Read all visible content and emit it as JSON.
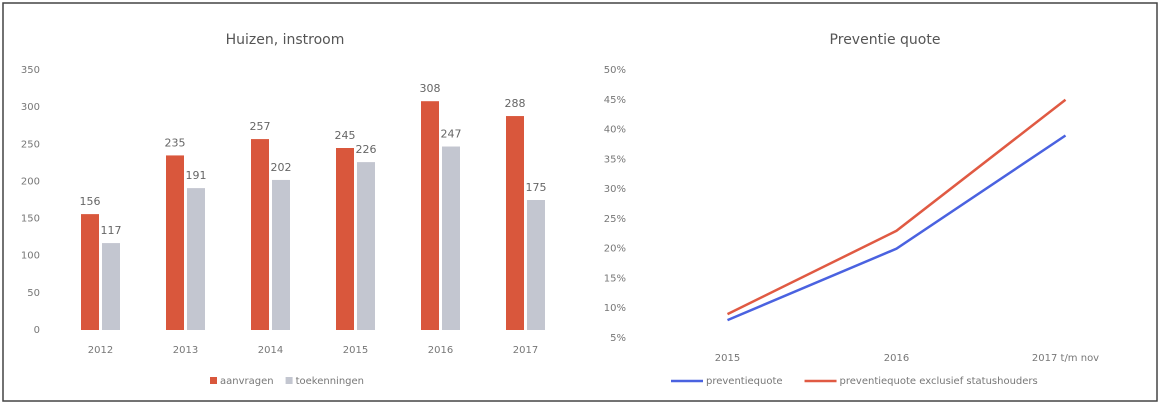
{
  "chart_data": [
    {
      "type": "bar",
      "title": "Huizen, instroom",
      "categories": [
        "2012",
        "2013",
        "2014",
        "2015",
        "2016",
        "2017"
      ],
      "series": [
        {
          "name": "aanvragen",
          "color": "#d9573c",
          "values": [
            156,
            235,
            257,
            245,
            308,
            288
          ]
        },
        {
          "name": "toekenningen",
          "color": "#c3c6d0",
          "values": [
            117,
            191,
            202,
            226,
            247,
            175
          ]
        }
      ],
      "ylim": [
        0,
        350
      ],
      "yticks": [
        0,
        50,
        100,
        150,
        200,
        250,
        300,
        350
      ],
      "grid": false,
      "legend": "bottom"
    },
    {
      "type": "line",
      "title": "Preventie quote",
      "categories": [
        "2015",
        "2016",
        "2017 t/m nov"
      ],
      "series": [
        {
          "name": "preventiequote",
          "color": "#4a62e0",
          "values": [
            8,
            20,
            39
          ]
        },
        {
          "name": "preventiequote exclusief statushouders",
          "color": "#e05a43",
          "values": [
            9,
            23,
            45
          ]
        }
      ],
      "ylim": [
        5,
        50
      ],
      "yticks": [
        {
          "value": 5,
          "label": "5%"
        },
        {
          "value": 10,
          "label": "10%"
        },
        {
          "value": 15,
          "label": "15%"
        },
        {
          "value": 20,
          "label": "20%"
        },
        {
          "value": 25,
          "label": "25%"
        },
        {
          "value": 30,
          "label": "30%"
        },
        {
          "value": 35,
          "label": "35%"
        },
        {
          "value": 40,
          "label": "40%"
        },
        {
          "value": 45,
          "label": "45%"
        },
        {
          "value": 50,
          "label": "50%"
        }
      ],
      "grid": false,
      "legend": "bottom"
    }
  ]
}
